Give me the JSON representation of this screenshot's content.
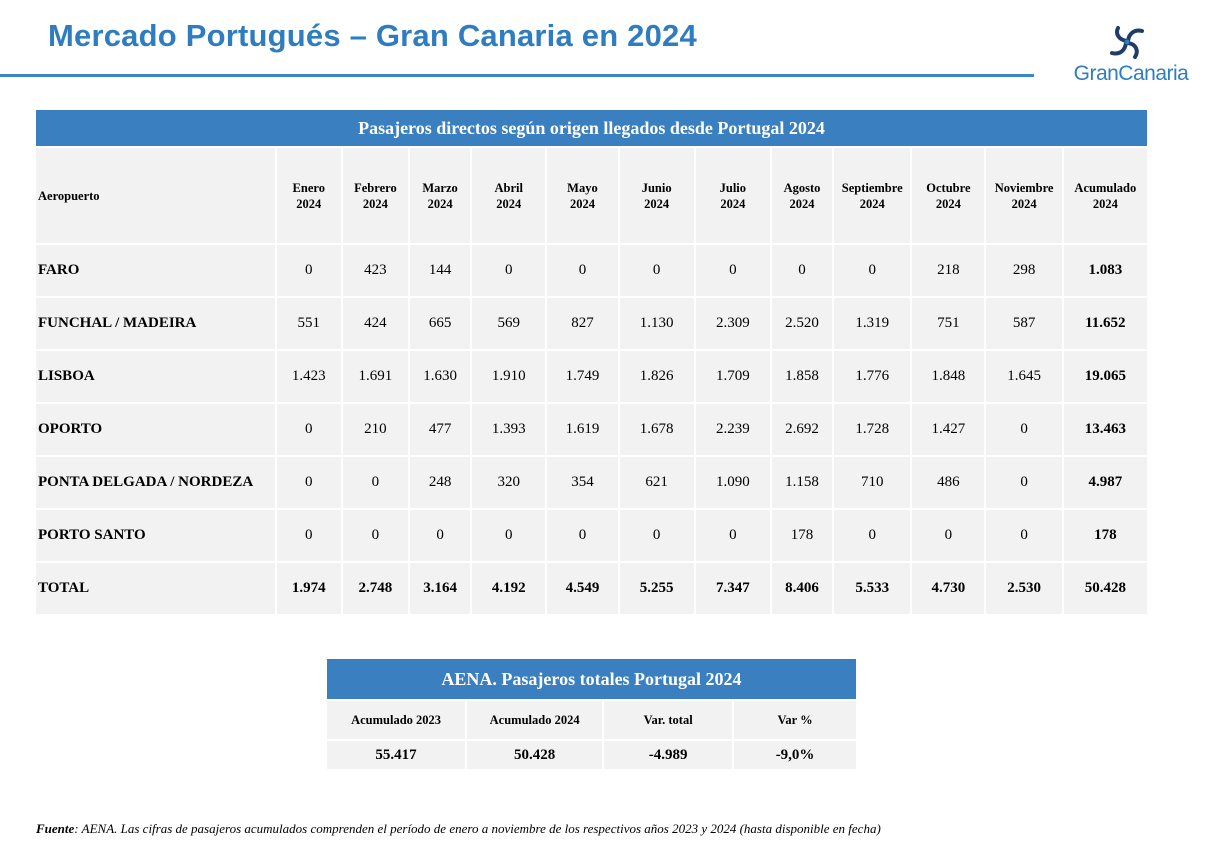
{
  "header": {
    "title": "Mercado Portugués – Gran Canaria en 2024",
    "logo_text": "GranCanaria"
  },
  "main_table": {
    "banner": "Pasajeros directos según origen llegados desde Portugal 2024",
    "columns": [
      [
        "Aeropuerto",
        ""
      ],
      [
        "Enero",
        "2024"
      ],
      [
        "Febrero",
        "2024"
      ],
      [
        "Marzo",
        "2024"
      ],
      [
        "Abril",
        "2024"
      ],
      [
        "Mayo",
        "2024"
      ],
      [
        "Junio",
        "2024"
      ],
      [
        "Julio",
        "2024"
      ],
      [
        "Agosto",
        "2024"
      ],
      [
        "Septiembre",
        "2024"
      ],
      [
        "Octubre",
        "2024"
      ],
      [
        "Noviembre",
        "2024"
      ],
      [
        "Acumulado",
        "2024"
      ]
    ],
    "rows": [
      [
        "FARO",
        "0",
        "423",
        "144",
        "0",
        "0",
        "0",
        "0",
        "0",
        "0",
        "218",
        "298",
        "1.083"
      ],
      [
        "FUNCHAL / MADEIRA",
        "551",
        "424",
        "665",
        "569",
        "827",
        "1.130",
        "2.309",
        "2.520",
        "1.319",
        "751",
        "587",
        "11.652"
      ],
      [
        "LISBOA",
        "1.423",
        "1.691",
        "1.630",
        "1.910",
        "1.749",
        "1.826",
        "1.709",
        "1.858",
        "1.776",
        "1.848",
        "1.645",
        "19.065"
      ],
      [
        "OPORTO",
        "0",
        "210",
        "477",
        "1.393",
        "1.619",
        "1.678",
        "2.239",
        "2.692",
        "1.728",
        "1.427",
        "0",
        "13.463"
      ],
      [
        "PONTA DELGADA / NORDEZA",
        "0",
        "0",
        "248",
        "320",
        "354",
        "621",
        "1.090",
        "1.158",
        "710",
        "486",
        "0",
        "4.987"
      ],
      [
        "PORTO SANTO",
        "0",
        "0",
        "0",
        "0",
        "0",
        "0",
        "0",
        "178",
        "0",
        "0",
        "0",
        "178"
      ],
      [
        "TOTAL",
        "1.974",
        "2.748",
        "3.164",
        "4.192",
        "4.549",
        "5.255",
        "7.347",
        "8.406",
        "5.533",
        "4.730",
        "2.530",
        "50.428"
      ]
    ]
  },
  "aena_table": {
    "banner": "AENA. Pasajeros totales Portugal 2024",
    "headers": [
      "Acumulado 2023",
      "Acumulado 2024",
      "Var. total",
      "Var %"
    ],
    "values": [
      "55.417",
      "50.428",
      "-4.989",
      "-9,0%"
    ]
  },
  "footer": {
    "source_label": "Fuente",
    "source_text": ": AENA. Las cifras de pasajeros acumulados comprenden el período de enero a noviembre de los respectivos años 2023 y 2024 (hasta disponible en fecha)"
  },
  "colors": {
    "accent": "#2f7dc0",
    "banner": "#3a7fbf",
    "cell": "#f2f2f2"
  }
}
